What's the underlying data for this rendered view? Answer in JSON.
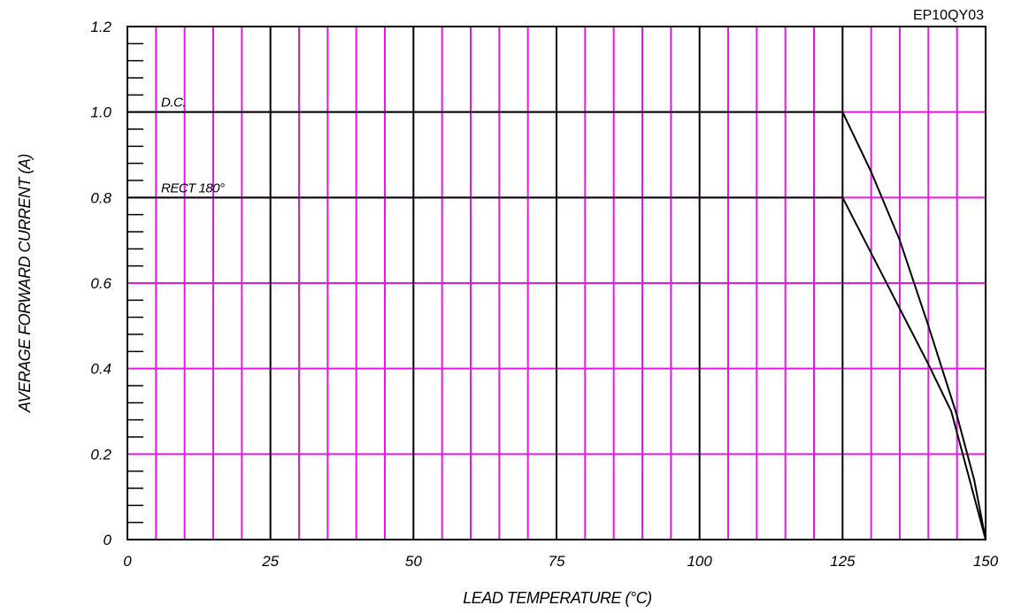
{
  "chart_data": {
    "type": "line",
    "part_number": "EP10QY03",
    "xlabel": "LEAD TEMPERATURE (°C)",
    "ylabel": "AVERAGE FORWARD CURRENT (A)",
    "xlim": [
      0,
      150
    ],
    "ylim": [
      0,
      1.2
    ],
    "x_ticks": [
      0,
      25,
      50,
      75,
      100,
      125,
      150
    ],
    "x_tick_labels": [
      "0",
      "25",
      "50",
      "75",
      "100",
      "125",
      "150"
    ],
    "y_ticks": [
      0,
      0.2,
      0.4,
      0.6,
      0.8,
      1.0,
      1.2
    ],
    "y_tick_labels": [
      "0",
      "0.2",
      "0.4",
      "0.6",
      "0.8",
      "1.0",
      "1.2"
    ],
    "x_minor_step": 5,
    "y_minor_step": 0.04,
    "grid": true,
    "colors": {
      "minor_grid": "#e817e8",
      "major_grid": "#000000",
      "series": "#000000"
    },
    "series": [
      {
        "name": "D.C.",
        "points": [
          [
            0,
            1.0
          ],
          [
            125,
            1.0
          ],
          [
            130,
            0.86
          ],
          [
            135,
            0.7
          ],
          [
            140,
            0.5
          ],
          [
            145,
            0.29
          ],
          [
            148,
            0.14
          ],
          [
            150,
            0.0
          ]
        ]
      },
      {
        "name": "RECT 180°",
        "points": [
          [
            0,
            0.8
          ],
          [
            125,
            0.8
          ],
          [
            130,
            0.67
          ],
          [
            135,
            0.54
          ],
          [
            140,
            0.41
          ],
          [
            144,
            0.3
          ],
          [
            148,
            0.1
          ],
          [
            150,
            0.0
          ]
        ]
      }
    ]
  }
}
